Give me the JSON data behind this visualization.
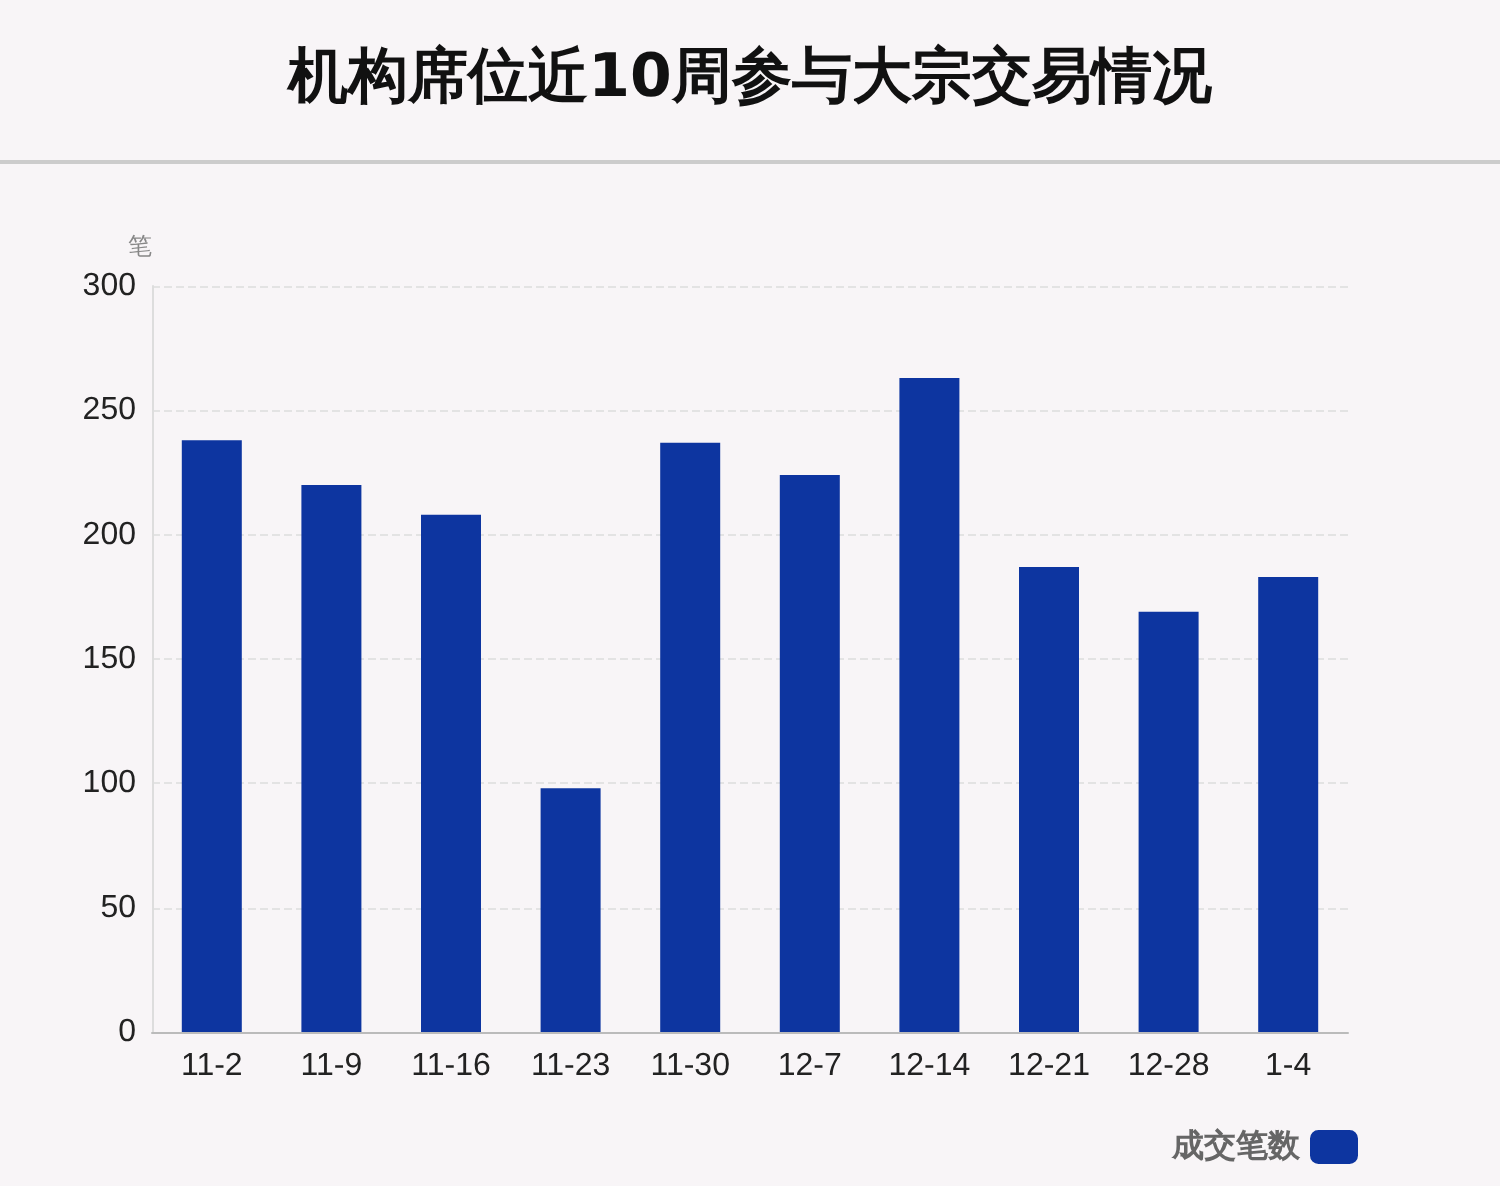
{
  "chart_data": {
    "type": "bar",
    "title": "机构席位近10周参与大宗交易情况",
    "ylabel": "笔",
    "categories": [
      "11-2",
      "11-9",
      "11-16",
      "11-23",
      "11-30",
      "12-7",
      "12-14",
      "12-21",
      "12-28",
      "1-4"
    ],
    "series": [
      {
        "name": "成交笔数",
        "color": "#0d35a0",
        "values": [
          238,
          220,
          208,
          98,
          237,
          224,
          263,
          187,
          169,
          183
        ]
      }
    ],
    "ylim": [
      0,
      300
    ],
    "yticks": [
      0,
      50,
      100,
      150,
      200,
      250,
      300
    ],
    "grid": "y",
    "legend": "bottom right"
  }
}
